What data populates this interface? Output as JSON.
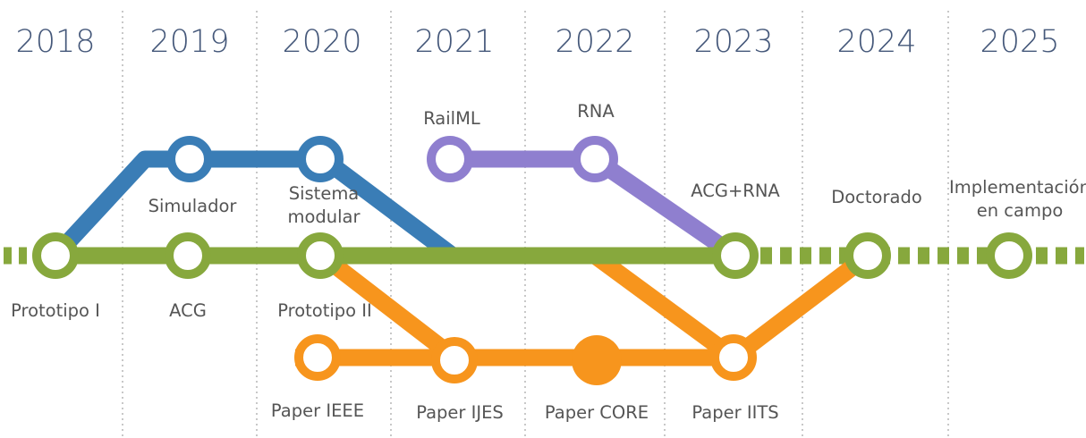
{
  "colors": {
    "main": "#87a83d",
    "blue": "#3a7db6",
    "purple": "#8f7fcf",
    "orange": "#f7951d",
    "text": "#555555",
    "year_text": "#45587a",
    "divider": "#b5b5b5"
  },
  "years": [
    "2018",
    "2019",
    "2020",
    "2021",
    "2022",
    "2023",
    "2024",
    "2025"
  ],
  "lines": {
    "main": {
      "color_key": "main",
      "stations": [
        {
          "id": "prototipo-1",
          "label": [
            "Prototipo I"
          ]
        },
        {
          "id": "acg",
          "label": [
            "ACG"
          ]
        },
        {
          "id": "prototipo-2",
          "label": [
            "Prototipo II"
          ]
        },
        {
          "id": "acg-rna",
          "label": [
            "ACG+RNA"
          ]
        },
        {
          "id": "doctorado",
          "label": [
            "Doctorado"
          ]
        },
        {
          "id": "implementacion",
          "label": [
            "Implementación",
            "en campo"
          ]
        }
      ]
    },
    "blue": {
      "color_key": "blue",
      "stations": [
        {
          "id": "simulador",
          "label": [
            "Simulador"
          ]
        },
        {
          "id": "sistema-modular",
          "label": [
            "Sistema",
            "modular"
          ]
        }
      ]
    },
    "purple": {
      "color_key": "purple",
      "stations": [
        {
          "id": "railml",
          "label": [
            "RailML"
          ]
        },
        {
          "id": "rna",
          "label": [
            "RNA"
          ]
        }
      ]
    },
    "orange": {
      "color_key": "orange",
      "stations": [
        {
          "id": "paper-ieee",
          "label": [
            "Paper IEEE"
          ]
        },
        {
          "id": "paper-ijes",
          "label": [
            "Paper IJES"
          ]
        },
        {
          "id": "paper-core",
          "label": [
            "Paper CORE"
          ]
        },
        {
          "id": "paper-iits",
          "label": [
            "Paper IITS"
          ]
        }
      ]
    }
  }
}
